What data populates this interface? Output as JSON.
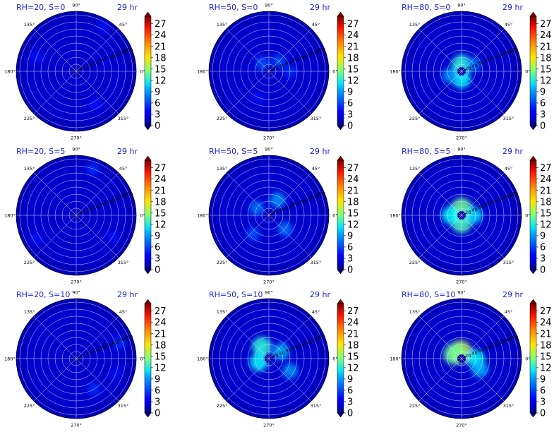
{
  "time_label": "29 hr",
  "angle_tick_labels": [
    "0°",
    "45°",
    "90°",
    "135°",
    "180°",
    "225°",
    "270°",
    "315°"
  ],
  "radial_tick_labels": [
    "20",
    "40",
    "60",
    "80",
    "100",
    "120",
    "140",
    "160"
  ],
  "colorbar": {
    "ticks": [
      "0",
      "3",
      "6",
      "9",
      "12",
      "15",
      "18",
      "21",
      "24",
      "27"
    ],
    "min": 0,
    "max": 29,
    "colormap": "jet"
  },
  "chart_data": [
    {
      "type": "heatmap",
      "title": "RH=20, S=0",
      "rmax": 170,
      "hotspots": [
        {
          "theta_deg": 60,
          "r": 150,
          "value": 4
        },
        {
          "theta_deg": 160,
          "r": 120,
          "value": 4
        },
        {
          "theta_deg": 300,
          "r": 110,
          "value": 4
        },
        {
          "theta_deg": 20,
          "r": 90,
          "value": 3
        }
      ]
    },
    {
      "type": "heatmap",
      "title": "RH=50, S=0",
      "rmax": 170,
      "hotspots": [
        {
          "theta_deg": 45,
          "r": 40,
          "value": 6
        },
        {
          "theta_deg": 130,
          "r": 30,
          "value": 6
        },
        {
          "theta_deg": 250,
          "r": 80,
          "value": 4
        },
        {
          "theta_deg": 0,
          "r": 60,
          "value": 5
        }
      ]
    },
    {
      "type": "heatmap",
      "title": "RH=80, S=0",
      "rmax": 170,
      "hotspots": [
        {
          "theta_deg": 90,
          "r": 20,
          "value": 12
        },
        {
          "theta_deg": 270,
          "r": 22,
          "value": 11
        },
        {
          "theta_deg": 200,
          "r": 35,
          "value": 8
        },
        {
          "theta_deg": 30,
          "r": 40,
          "value": 7
        }
      ]
    },
    {
      "type": "heatmap",
      "title": "RH=20, S=5",
      "rmax": 170,
      "hotspots": [
        {
          "theta_deg": 70,
          "r": 140,
          "value": 5
        },
        {
          "theta_deg": 210,
          "r": 130,
          "value": 4
        },
        {
          "theta_deg": 330,
          "r": 120,
          "value": 4
        }
      ]
    },
    {
      "type": "heatmap",
      "title": "RH=50, S=5",
      "rmax": 170,
      "hotspots": [
        {
          "theta_deg": 60,
          "r": 50,
          "value": 8
        },
        {
          "theta_deg": 150,
          "r": 40,
          "value": 7
        },
        {
          "theta_deg": 320,
          "r": 60,
          "value": 7
        },
        {
          "theta_deg": 230,
          "r": 70,
          "value": 6
        }
      ]
    },
    {
      "type": "heatmap",
      "title": "RH=80, S=5",
      "rmax": 170,
      "hotspots": [
        {
          "theta_deg": 90,
          "r": 20,
          "value": 14
        },
        {
          "theta_deg": 270,
          "r": 22,
          "value": 13
        },
        {
          "theta_deg": 180,
          "r": 30,
          "value": 11
        },
        {
          "theta_deg": 0,
          "r": 35,
          "value": 10
        }
      ]
    },
    {
      "type": "heatmap",
      "title": "RH=20, S=10",
      "rmax": 170,
      "hotspots": [
        {
          "theta_deg": 20,
          "r": 130,
          "value": 5
        },
        {
          "theta_deg": 300,
          "r": 100,
          "value": 5
        },
        {
          "theta_deg": 340,
          "r": 120,
          "value": 4
        }
      ]
    },
    {
      "type": "heatmap",
      "title": "RH=50, S=10",
      "rmax": 170,
      "hotspots": [
        {
          "theta_deg": 120,
          "r": 40,
          "value": 12
        },
        {
          "theta_deg": 200,
          "r": 30,
          "value": 11
        },
        {
          "theta_deg": 30,
          "r": 40,
          "value": 9
        },
        {
          "theta_deg": 330,
          "r": 70,
          "value": 8
        }
      ]
    },
    {
      "type": "heatmap",
      "title": "RH=80, S=10",
      "rmax": 170,
      "hotspots": [
        {
          "theta_deg": 100,
          "r": 20,
          "value": 16
        },
        {
          "theta_deg": 150,
          "r": 25,
          "value": 14
        },
        {
          "theta_deg": 0,
          "r": 40,
          "value": 11
        },
        {
          "theta_deg": 330,
          "r": 60,
          "value": 9
        }
      ]
    }
  ]
}
